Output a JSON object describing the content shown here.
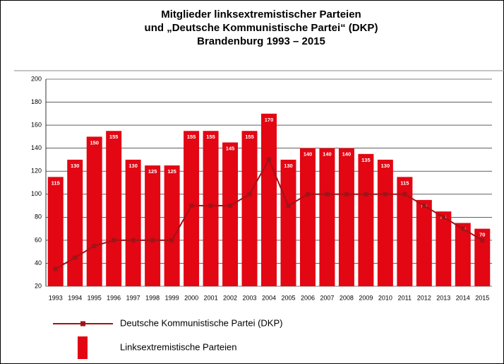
{
  "chart_data": {
    "type": "bar",
    "title": [
      "Mitglieder linksextremistischer Parteien",
      "und „Deutsche Kommunistische Partei“ (DKP)",
      "Brandenburg 1993 – 2015"
    ],
    "categories": [
      "1993",
      "1994",
      "1995",
      "1996",
      "1997",
      "1998",
      "1999",
      "2000",
      "2001",
      "2002",
      "2003",
      "2004",
      "2005",
      "2006",
      "2007",
      "2008",
      "2009",
      "2010",
      "2011",
      "2012",
      "2013",
      "2014",
      "2015"
    ],
    "series": [
      {
        "name": "Deutsche Kommunistische Partei (DKP)",
        "type": "line",
        "color": "#a01418",
        "values": [
          35,
          45,
          55,
          60,
          60,
          60,
          60,
          90,
          90,
          90,
          100,
          130,
          90,
          100,
          100,
          100,
          100,
          100,
          100,
          90,
          80,
          70,
          60
        ]
      },
      {
        "name": "Linksextremistische Parteien",
        "type": "bar",
        "color": "#e30613",
        "values": [
          115,
          130,
          150,
          155,
          130,
          125,
          125,
          155,
          155,
          145,
          155,
          170,
          130,
          140,
          140,
          140,
          135,
          130,
          115,
          95,
          85,
          75,
          70
        ]
      }
    ],
    "ylim": [
      20,
      200
    ],
    "yticks": [
      20,
      40,
      60,
      80,
      100,
      120,
      140,
      160,
      180,
      200
    ],
    "grid": true
  }
}
